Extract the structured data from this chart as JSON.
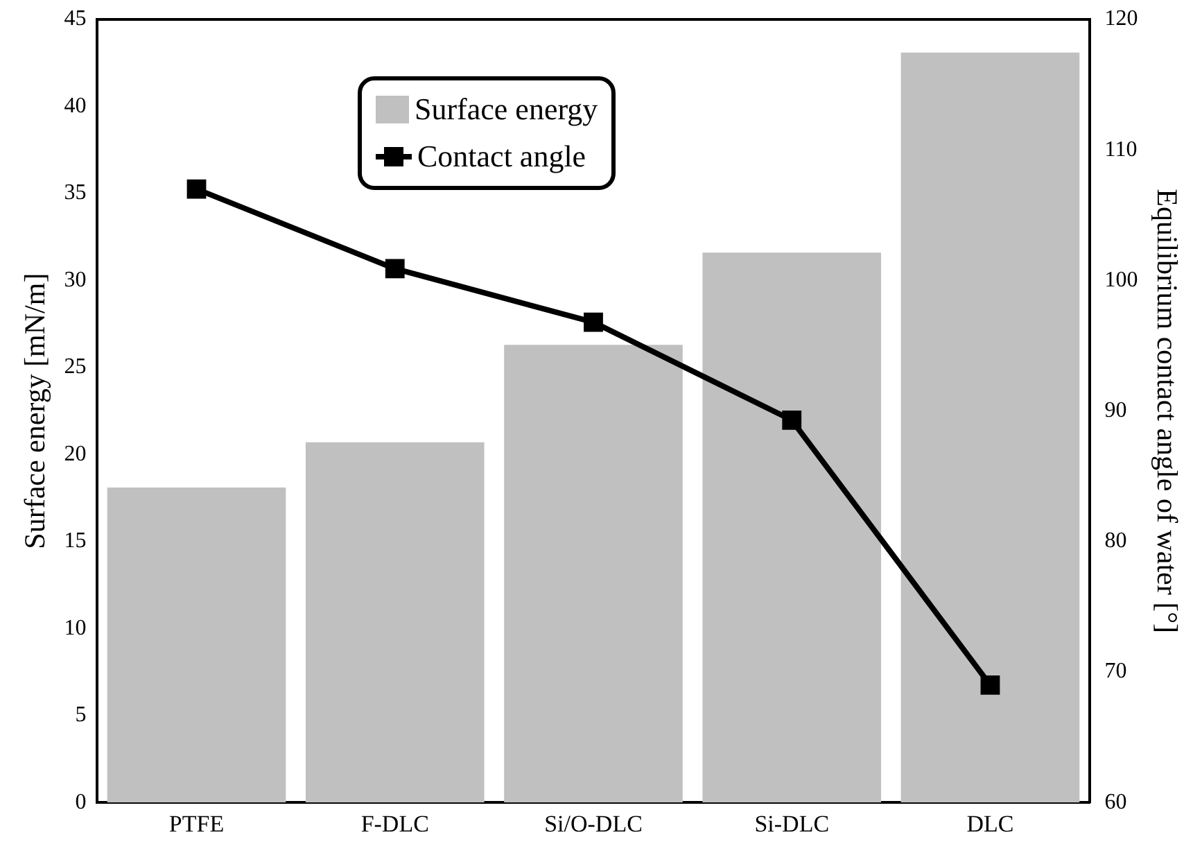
{
  "chart_data": {
    "type": "bar",
    "categories": [
      "PTFE",
      "F-DLC",
      "Si/O-DLC",
      "Si-DLC",
      "DLC"
    ],
    "ylabel": "Surface energy [mN/m]",
    "y2label": "Equilibrium contact angle of water [°]",
    "series": [
      {
        "name": "Surface energy",
        "color": "#c0c0c0",
        "values": [
          18.1,
          20.7,
          26.3,
          31.6,
          43.1
        ]
      },
      {
        "name": "Contact angle",
        "type": "line",
        "axis": "y2",
        "color": "#000000",
        "marker": "square",
        "values": [
          107.0,
          100.9,
          96.8,
          89.3,
          69.0
        ]
      }
    ],
    "ylim": [
      0,
      45
    ],
    "yticks": [
      0,
      5,
      10,
      15,
      20,
      25,
      30,
      35,
      40,
      45
    ],
    "y2lim": [
      60,
      120
    ],
    "y2ticks": [
      60,
      70,
      80,
      90,
      100,
      110,
      120
    ],
    "legend": "top",
    "grid": false
  }
}
